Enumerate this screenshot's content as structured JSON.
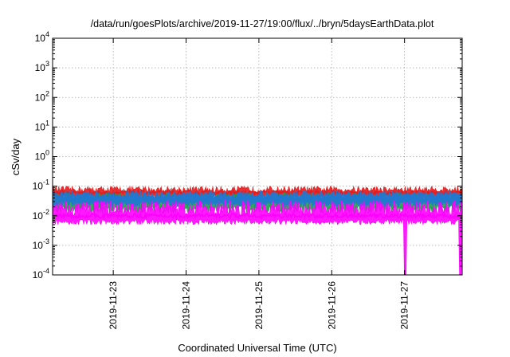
{
  "chart_data": {
    "type": "area",
    "title": "/data/run/goesPlots/archive/2019-11-27/19:00/flux/../bryn/5daysEarthData.plot",
    "xlabel": "Coordinated Universal Time (UTC)",
    "ylabel": "cSv/day",
    "yscale": "log",
    "ylim": [
      0.0001,
      10000
    ],
    "xlim": [
      "2019-11-22T04:00",
      "2019-11-27T19:00"
    ],
    "grid": true,
    "legend": "none",
    "xticks": [
      "2019-11-23",
      "2019-11-24",
      "2019-11-25",
      "2019-11-26",
      "2019-11-27"
    ],
    "yticks": [
      {
        "value": 0.0001,
        "base": "10",
        "exp": "-4"
      },
      {
        "value": 0.001,
        "base": "10",
        "exp": "-3"
      },
      {
        "value": 0.01,
        "base": "10",
        "exp": "-2"
      },
      {
        "value": 0.1,
        "base": "10",
        "exp": "-1"
      },
      {
        "value": 1,
        "base": "10",
        "exp": "0"
      },
      {
        "value": 10,
        "base": "10",
        "exp": "1"
      },
      {
        "value": 100,
        "base": "10",
        "exp": "2"
      },
      {
        "value": 1000,
        "base": "10",
        "exp": "3"
      },
      {
        "value": 10000,
        "base": "10",
        "exp": "4"
      }
    ],
    "series": [
      {
        "color": "#e41a1c",
        "typical": 0.06,
        "low": 0.04,
        "high": 0.1
      },
      {
        "color": "#1f9e4a",
        "typical": 0.035,
        "low": 0.012,
        "high": 0.06
      },
      {
        "color": "#1f78d4",
        "typical": 0.04,
        "low": 0.02,
        "high": 0.07
      },
      {
        "color": "#ff00ff",
        "typical": 0.01,
        "low": 0.005,
        "high": 0.035
      }
    ],
    "dropouts": [
      "2019-11-27T00:15",
      "2019-11-27T18:30"
    ]
  }
}
